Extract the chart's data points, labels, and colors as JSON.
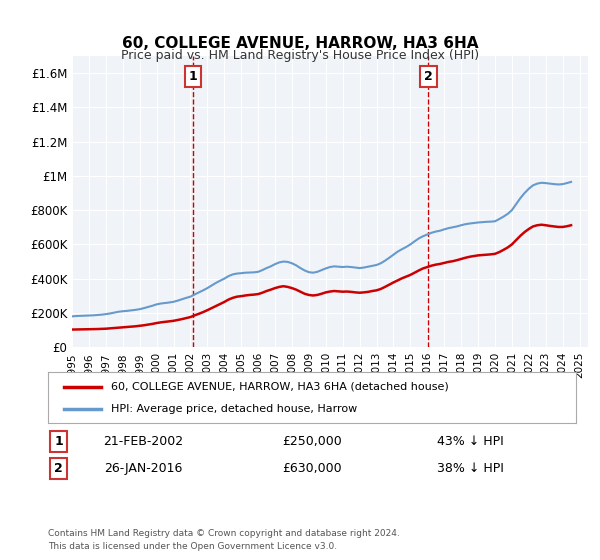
{
  "title": "60, COLLEGE AVENUE, HARROW, HA3 6HA",
  "subtitle": "Price paid vs. HM Land Registry's House Price Index (HPI)",
  "legend_line1": "60, COLLEGE AVENUE, HARROW, HA3 6HA (detached house)",
  "legend_line2": "HPI: Average price, detached house, Harrow",
  "footnote1": "Contains HM Land Registry data © Crown copyright and database right 2024.",
  "footnote2": "This data is licensed under the Open Government Licence v3.0.",
  "transaction1_label": "1",
  "transaction1_date": "21-FEB-2002",
  "transaction1_price": "£250,000",
  "transaction1_hpi": "43% ↓ HPI",
  "transaction2_label": "2",
  "transaction2_date": "26-JAN-2016",
  "transaction2_price": "£630,000",
  "transaction2_hpi": "38% ↓ HPI",
  "transaction1_year": 2002.13,
  "transaction2_year": 2016.07,
  "color_red": "#cc0000",
  "color_blue": "#6699cc",
  "color_dashed": "#cc0000",
  "ylim_min": 0,
  "ylim_max": 1700000,
  "xlim_min": 1995,
  "xlim_max": 2025.5,
  "yticks": [
    0,
    200000,
    400000,
    600000,
    800000,
    1000000,
    1200000,
    1400000,
    1600000
  ],
  "ytick_labels": [
    "£0",
    "£200K",
    "£400K",
    "£600K",
    "£800K",
    "£1M",
    "£1.2M",
    "£1.4M",
    "£1.6M"
  ],
  "hpi_x": [
    1995.0,
    1995.25,
    1995.5,
    1995.75,
    1996.0,
    1996.25,
    1996.5,
    1996.75,
    1997.0,
    1997.25,
    1997.5,
    1997.75,
    1998.0,
    1998.25,
    1998.5,
    1998.75,
    1999.0,
    1999.25,
    1999.5,
    1999.75,
    2000.0,
    2000.25,
    2000.5,
    2000.75,
    2001.0,
    2001.25,
    2001.5,
    2001.75,
    2002.0,
    2002.25,
    2002.5,
    2002.75,
    2003.0,
    2003.25,
    2003.5,
    2003.75,
    2004.0,
    2004.25,
    2004.5,
    2004.75,
    2005.0,
    2005.25,
    2005.5,
    2005.75,
    2006.0,
    2006.25,
    2006.5,
    2006.75,
    2007.0,
    2007.25,
    2007.5,
    2007.75,
    2008.0,
    2008.25,
    2008.5,
    2008.75,
    2009.0,
    2009.25,
    2009.5,
    2009.75,
    2010.0,
    2010.25,
    2010.5,
    2010.75,
    2011.0,
    2011.25,
    2011.5,
    2011.75,
    2012.0,
    2012.25,
    2012.5,
    2012.75,
    2013.0,
    2013.25,
    2013.5,
    2013.75,
    2014.0,
    2014.25,
    2014.5,
    2014.75,
    2015.0,
    2015.25,
    2015.5,
    2015.75,
    2016.0,
    2016.25,
    2016.5,
    2016.75,
    2017.0,
    2017.25,
    2017.5,
    2017.75,
    2018.0,
    2018.25,
    2018.5,
    2018.75,
    2019.0,
    2019.25,
    2019.5,
    2019.75,
    2020.0,
    2020.25,
    2020.5,
    2020.75,
    2021.0,
    2021.25,
    2021.5,
    2021.75,
    2022.0,
    2022.25,
    2022.5,
    2022.75,
    2023.0,
    2023.25,
    2023.5,
    2023.75,
    2024.0,
    2024.25,
    2024.5
  ],
  "hpi_y": [
    180000,
    182000,
    183000,
    184000,
    185000,
    186000,
    188000,
    190000,
    193000,
    197000,
    202000,
    207000,
    210000,
    212000,
    215000,
    218000,
    222000,
    228000,
    235000,
    242000,
    250000,
    255000,
    258000,
    261000,
    265000,
    272000,
    280000,
    288000,
    295000,
    308000,
    320000,
    332000,
    345000,
    360000,
    375000,
    388000,
    400000,
    415000,
    425000,
    430000,
    432000,
    435000,
    436000,
    437000,
    440000,
    450000,
    462000,
    472000,
    485000,
    495000,
    500000,
    498000,
    490000,
    478000,
    462000,
    448000,
    438000,
    435000,
    440000,
    450000,
    460000,
    468000,
    472000,
    470000,
    468000,
    470000,
    468000,
    465000,
    462000,
    465000,
    470000,
    475000,
    480000,
    490000,
    505000,
    522000,
    540000,
    558000,
    572000,
    585000,
    600000,
    618000,
    635000,
    648000,
    658000,
    668000,
    675000,
    680000,
    688000,
    695000,
    700000,
    705000,
    712000,
    718000,
    722000,
    725000,
    728000,
    730000,
    732000,
    733000,
    735000,
    748000,
    762000,
    778000,
    800000,
    835000,
    870000,
    900000,
    925000,
    945000,
    955000,
    960000,
    958000,
    955000,
    952000,
    950000,
    952000,
    958000,
    965000
  ],
  "price_x": [
    1995.0,
    1995.25,
    1995.5,
    1995.75,
    1996.0,
    1996.25,
    1996.5,
    1996.75,
    1997.0,
    1997.25,
    1997.5,
    1997.75,
    1998.0,
    1998.25,
    1998.5,
    1998.75,
    1999.0,
    1999.25,
    1999.5,
    1999.75,
    2000.0,
    2000.25,
    2000.5,
    2000.75,
    2001.0,
    2001.25,
    2001.5,
    2001.75,
    2002.0,
    2002.25,
    2002.5,
    2002.75,
    2003.0,
    2003.25,
    2003.5,
    2003.75,
    2004.0,
    2004.25,
    2004.5,
    2004.75,
    2005.0,
    2005.25,
    2005.5,
    2005.75,
    2006.0,
    2006.25,
    2006.5,
    2006.75,
    2007.0,
    2007.25,
    2007.5,
    2007.75,
    2008.0,
    2008.25,
    2008.5,
    2008.75,
    2009.0,
    2009.25,
    2009.5,
    2009.75,
    2010.0,
    2010.25,
    2010.5,
    2010.75,
    2011.0,
    2011.25,
    2011.5,
    2011.75,
    2012.0,
    2012.25,
    2012.5,
    2012.75,
    2013.0,
    2013.25,
    2013.5,
    2013.75,
    2014.0,
    2014.25,
    2014.5,
    2014.75,
    2015.0,
    2015.25,
    2015.5,
    2015.75,
    2016.0,
    2016.25,
    2016.5,
    2016.75,
    2017.0,
    2017.25,
    2017.5,
    2017.75,
    2018.0,
    2018.25,
    2018.5,
    2018.75,
    2019.0,
    2019.25,
    2019.5,
    2019.75,
    2020.0,
    2020.25,
    2020.5,
    2020.75,
    2021.0,
    2021.25,
    2021.5,
    2021.75,
    2022.0,
    2022.25,
    2022.5,
    2022.75,
    2023.0,
    2023.25,
    2023.5,
    2023.75,
    2024.0,
    2024.25,
    2024.5
  ],
  "price_y": [
    103000,
    103500,
    104000,
    104500,
    105000,
    105500,
    106000,
    107000,
    108000,
    110000,
    112000,
    114000,
    116000,
    118000,
    120000,
    122000,
    125000,
    128000,
    132000,
    136000,
    141000,
    145000,
    148000,
    151000,
    154000,
    159000,
    164000,
    170000,
    176000,
    186000,
    195000,
    205000,
    216000,
    228000,
    240000,
    252000,
    264000,
    278000,
    288000,
    295000,
    298000,
    302000,
    305000,
    307000,
    310000,
    318000,
    328000,
    336000,
    345000,
    352000,
    356000,
    352000,
    345000,
    336000,
    324000,
    312000,
    305000,
    302000,
    305000,
    312000,
    320000,
    325000,
    328000,
    326000,
    324000,
    325000,
    323000,
    320000,
    318000,
    320000,
    323000,
    328000,
    332000,
    340000,
    352000,
    365000,
    378000,
    390000,
    402000,
    412000,
    422000,
    435000,
    448000,
    460000,
    468000,
    476000,
    482000,
    486000,
    492000,
    498000,
    502000,
    508000,
    515000,
    522000,
    528000,
    532000,
    536000,
    538000,
    540000,
    542000,
    545000,
    555000,
    568000,
    582000,
    600000,
    625000,
    650000,
    672000,
    690000,
    705000,
    712000,
    715000,
    712000,
    708000,
    705000,
    702000,
    702000,
    706000,
    712000
  ],
  "bg_color": "#f0f4f8"
}
